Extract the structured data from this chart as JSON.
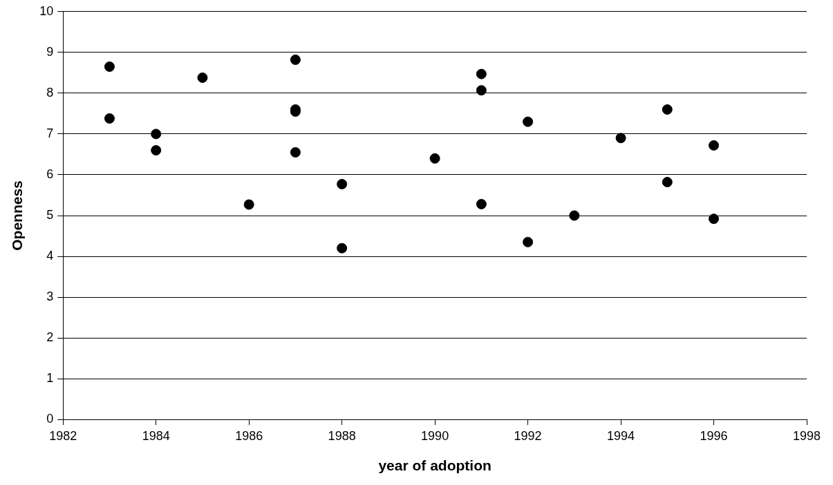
{
  "chart_data": {
    "type": "scatter",
    "xlabel": "year of adoption",
    "ylabel": "Openness",
    "x": [
      1983,
      1983,
      1984,
      1984,
      1985,
      1986,
      1987,
      1987,
      1987,
      1987,
      1988,
      1988,
      1990,
      1991,
      1991,
      1991,
      1992,
      1992,
      1993,
      1994,
      1995,
      1995,
      1996,
      1996
    ],
    "series": [
      {
        "color": "#000000",
        "values": [
          8.65,
          7.38,
          7.0,
          6.6,
          8.38,
          5.27,
          8.82,
          7.6,
          7.55,
          6.55,
          5.77,
          4.2,
          6.4,
          8.47,
          8.07,
          5.28,
          7.3,
          4.35,
          5.0,
          6.9,
          7.6,
          5.82,
          6.72,
          4.92
        ]
      }
    ],
    "xlim": [
      1982,
      1998
    ],
    "xticks": [
      1982,
      1984,
      1986,
      1988,
      1990,
      1992,
      1994,
      1996,
      1998
    ],
    "ylim": [
      0,
      10
    ],
    "yticks": [
      0,
      1,
      2,
      3,
      4,
      5,
      6,
      7,
      8,
      9,
      10
    ],
    "grid": "y",
    "legend": false,
    "marker": "circle"
  }
}
